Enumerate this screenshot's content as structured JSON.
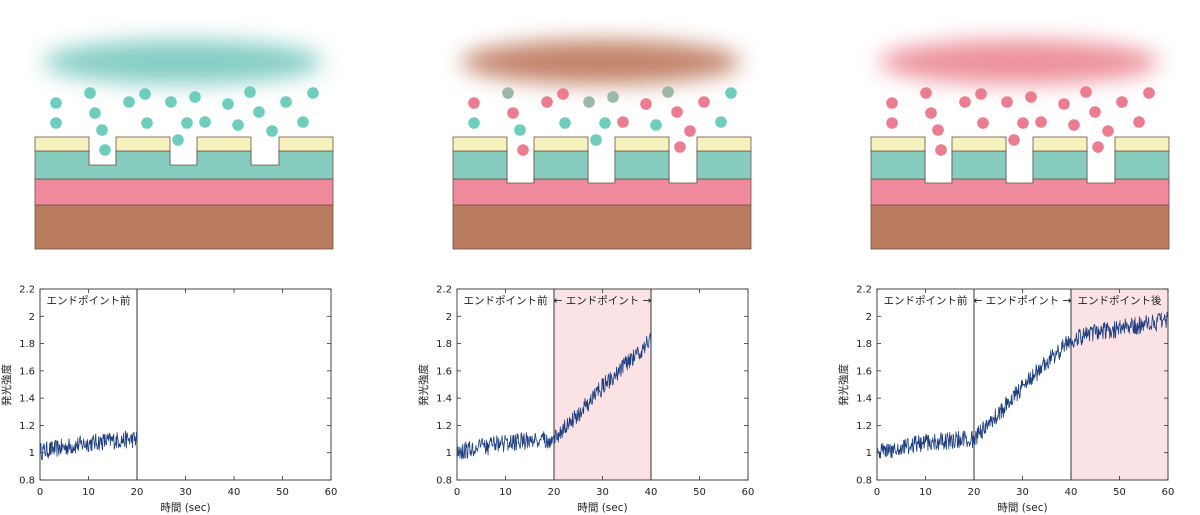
{
  "colors": {
    "cap": "#f6f2bd",
    "green_layer": "#86ccbf",
    "pink_layer": "#ee8a9b",
    "substrate": "#b97b5e",
    "particle_teal": "#6ecdbd",
    "particle_pink": "#ec7d90",
    "particle_grey": "#9ab8a9",
    "trace": "#1f3f80",
    "shade": "#fbe3e5",
    "cloud_1": "#7ecbc1",
    "cloud_2": "#c07d62",
    "cloud_3": "#ec8b96"
  },
  "panels": [
    {
      "cloud_icon": "teal-plasma-cloud",
      "etch_stage": "before-endpoint",
      "labels": [
        {
          "text": "エンドポイント前"
        }
      ]
    },
    {
      "cloud_icon": "brown-plasma-cloud",
      "etch_stage": "at-endpoint",
      "labels": [
        {
          "text": "エンドポイント前"
        },
        {
          "text": "← エンドポイント →"
        }
      ]
    },
    {
      "cloud_icon": "pink-plasma-cloud",
      "etch_stage": "after-endpoint",
      "labels": [
        {
          "text": "エンドポイント前"
        },
        {
          "text": "← エンドポイント →"
        },
        {
          "text": "エンドポイント後"
        }
      ]
    }
  ],
  "chart_data": [
    {
      "type": "line",
      "xlabel": "時間 (sec)",
      "ylabel": "発光強度",
      "xlim": [
        0,
        60
      ],
      "ylim": [
        0.8,
        2.2
      ],
      "xticks": [
        0,
        10,
        20,
        30,
        40,
        50,
        60
      ],
      "yticks": [
        0.8,
        1,
        1.2,
        1.4,
        1.6,
        1.8,
        2,
        2.2
      ],
      "ytick_labels": [
        "0.8",
        "1",
        "1.2",
        "1.4",
        "1.6",
        "1.8",
        "2",
        "2.2"
      ],
      "vlines": [
        20
      ],
      "shaded": [],
      "x": [
        0,
        5,
        10,
        15,
        20
      ],
      "y": [
        1.01,
        1.04,
        1.07,
        1.09,
        1.1
      ]
    },
    {
      "type": "line",
      "xlabel": "時間 (sec)",
      "ylabel": "発光強度",
      "xlim": [
        0,
        60
      ],
      "ylim": [
        0.8,
        2.2
      ],
      "xticks": [
        0,
        10,
        20,
        30,
        40,
        50,
        60
      ],
      "yticks": [
        0.8,
        1,
        1.2,
        1.4,
        1.6,
        1.8,
        2,
        2.2
      ],
      "ytick_labels": [
        "0.8",
        "1",
        "1.2",
        "1.4",
        "1.6",
        "1.8",
        "2",
        "2.2"
      ],
      "vlines": [
        20,
        40
      ],
      "shaded": [
        [
          20,
          40
        ]
      ],
      "x": [
        0,
        5,
        10,
        15,
        20,
        25,
        30,
        35,
        40
      ],
      "y": [
        1.01,
        1.04,
        1.07,
        1.09,
        1.1,
        1.28,
        1.48,
        1.66,
        1.82
      ]
    },
    {
      "type": "line",
      "xlabel": "時間 (sec)",
      "ylabel": "発光強度",
      "xlim": [
        0,
        60
      ],
      "ylim": [
        0.8,
        2.2
      ],
      "xticks": [
        0,
        10,
        20,
        30,
        40,
        50,
        60
      ],
      "yticks": [
        0.8,
        1,
        1.2,
        1.4,
        1.6,
        1.8,
        2,
        2.2
      ],
      "ytick_labels": [
        "0.8",
        "1",
        "1.2",
        "1.4",
        "1.6",
        "1.8",
        "2",
        "2.2"
      ],
      "vlines": [
        20,
        40
      ],
      "shaded": [
        [
          40,
          60
        ]
      ],
      "x": [
        0,
        5,
        10,
        15,
        20,
        25,
        30,
        35,
        40,
        45,
        50,
        55,
        60
      ],
      "y": [
        1.01,
        1.04,
        1.07,
        1.09,
        1.1,
        1.28,
        1.48,
        1.66,
        1.82,
        1.88,
        1.91,
        1.94,
        1.97
      ]
    }
  ]
}
